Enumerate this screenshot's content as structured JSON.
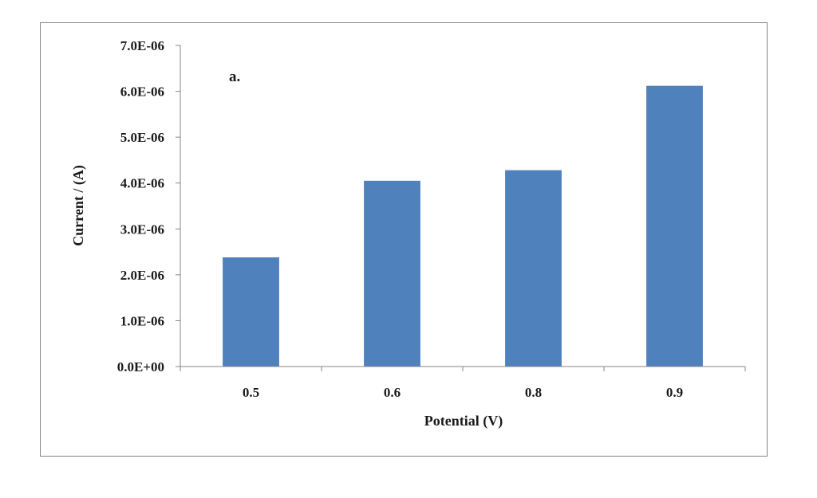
{
  "chart_data": {
    "type": "bar",
    "categories": [
      "0.5",
      "0.6",
      "0.8",
      "0.9"
    ],
    "values": [
      2.38e-06,
      4.05e-06,
      4.28e-06,
      6.12e-06
    ],
    "xlabel": "Potential (V)",
    "ylabel": "Current / (A)",
    "ylim": [
      0,
      7e-06
    ],
    "ytick_values": [
      0,
      1e-06,
      2e-06,
      3e-06,
      4e-06,
      5e-06,
      6e-06,
      7e-06
    ],
    "ytick_labels": [
      "0.0E+00",
      "1.0E-06",
      "2.0E-06",
      "3.0E-06",
      "4.0E-06",
      "5.0E-06",
      "6.0E-06",
      "7.0E-06"
    ],
    "annotation": "a.",
    "grid": false,
    "legend": "none",
    "bar_color": "#4f81bd",
    "axis_color": "#868686"
  }
}
